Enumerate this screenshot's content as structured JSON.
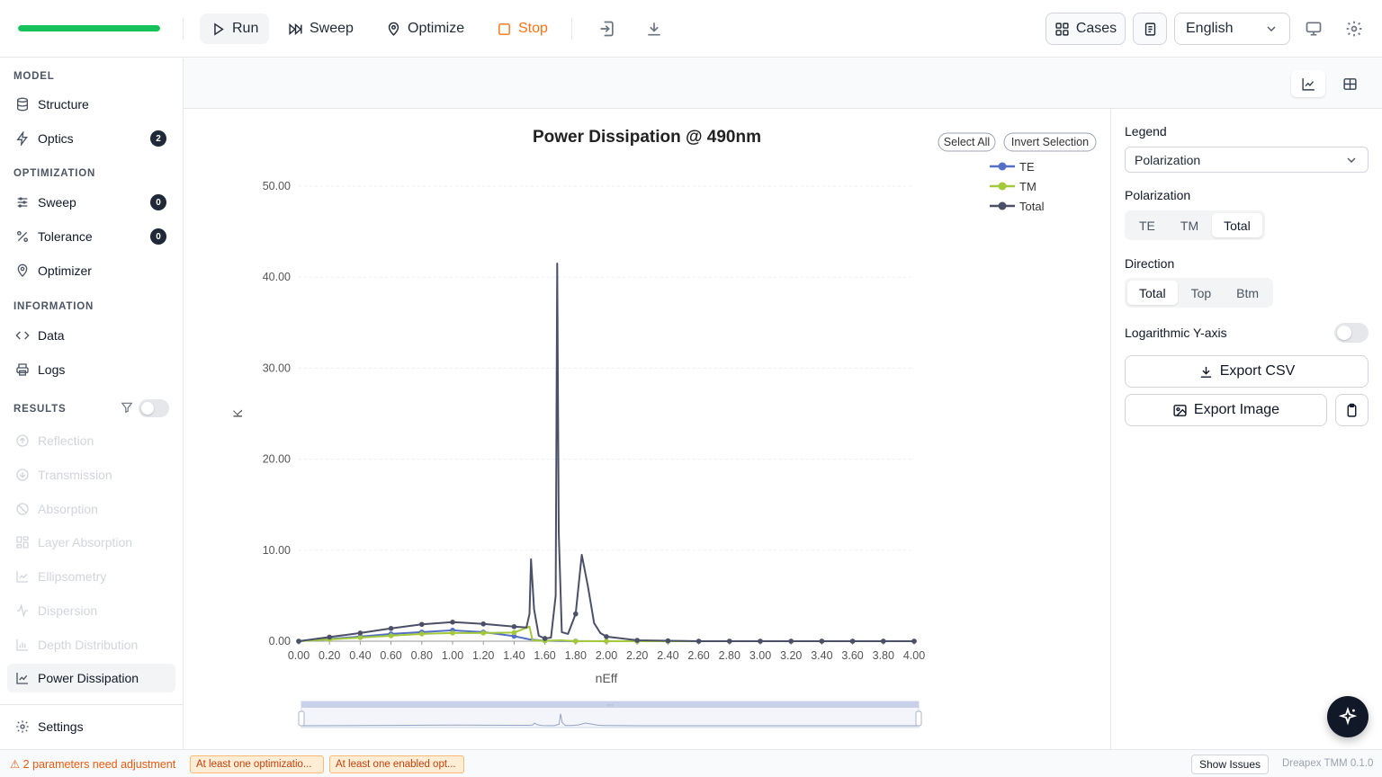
{
  "toolbar": {
    "progress": 1.0,
    "run": "Run",
    "sweep": "Sweep",
    "optimize": "Optimize",
    "stop": "Stop",
    "cases": "Cases",
    "language": "English"
  },
  "sidebar": {
    "model_title": "MODEL",
    "structure": "Structure",
    "optics": "Optics",
    "optics_badge": "2",
    "optimization_title": "OPTIMIZATION",
    "sweep": "Sweep",
    "sweep_badge": "0",
    "tolerance": "Tolerance",
    "tolerance_badge": "0",
    "optimizer": "Optimizer",
    "information_title": "INFORMATION",
    "data": "Data",
    "logs": "Logs",
    "results_title": "RESULTS",
    "results": [
      "Reflection",
      "Transmission",
      "Absorption",
      "Layer Absorption",
      "Ellipsometry",
      "Dispersion",
      "Depth Distribution"
    ],
    "active": "Power Dissipation",
    "settings": "Settings"
  },
  "chart_controls": {
    "select_all": "Select All",
    "invert_selection": "Invert Selection"
  },
  "chart_data": {
    "type": "line",
    "title": "Power Dissipation @ 490nm",
    "xlabel": "nEff",
    "ylabel": "K",
    "xlim": [
      0,
      4
    ],
    "ylim": [
      0,
      50
    ],
    "x_ticks": [
      "0.00",
      "0.20",
      "0.40",
      "0.60",
      "0.80",
      "1.00",
      "1.20",
      "1.40",
      "1.60",
      "1.80",
      "2.00",
      "2.20",
      "2.40",
      "2.60",
      "2.80",
      "3.00",
      "3.20",
      "3.40",
      "3.60",
      "3.80",
      "4.00"
    ],
    "y_ticks": [
      "0.00",
      "10.00",
      "20.00",
      "30.00",
      "40.00",
      "50.00"
    ],
    "grid": true,
    "legend_position": "top-right",
    "series": [
      {
        "name": "TE",
        "color": "#5470c6",
        "points": [
          [
            0,
            0
          ],
          [
            0.2,
            0.25
          ],
          [
            0.4,
            0.5
          ],
          [
            0.6,
            0.8
          ],
          [
            0.8,
            1.0
          ],
          [
            1.0,
            1.2
          ],
          [
            1.2,
            1.0
          ],
          [
            1.4,
            0.55
          ],
          [
            1.5,
            0.2
          ],
          [
            1.6,
            0.05
          ],
          [
            1.7,
            0.02
          ],
          [
            1.8,
            0.01
          ],
          [
            2.0,
            0
          ],
          [
            2.2,
            0
          ],
          [
            2.4,
            0
          ],
          [
            2.6,
            0
          ],
          [
            2.8,
            0
          ],
          [
            3.0,
            0
          ],
          [
            3.2,
            0
          ],
          [
            3.4,
            0
          ],
          [
            3.6,
            0
          ],
          [
            3.8,
            0
          ],
          [
            4.0,
            0
          ]
        ]
      },
      {
        "name": "TM",
        "color": "#a3c93a",
        "points": [
          [
            0,
            0
          ],
          [
            0.2,
            0.2
          ],
          [
            0.4,
            0.4
          ],
          [
            0.6,
            0.6
          ],
          [
            0.8,
            0.8
          ],
          [
            1.0,
            0.9
          ],
          [
            1.2,
            0.9
          ],
          [
            1.4,
            0.95
          ],
          [
            1.5,
            1.6
          ],
          [
            1.52,
            0.1
          ],
          [
            1.6,
            0.05
          ],
          [
            1.7,
            0.1
          ],
          [
            1.8,
            0
          ],
          [
            2.0,
            0
          ],
          [
            2.2,
            0
          ],
          [
            2.4,
            0
          ],
          [
            2.6,
            0
          ],
          [
            2.8,
            0
          ],
          [
            3.0,
            0
          ],
          [
            3.2,
            0
          ],
          [
            3.4,
            0
          ],
          [
            3.6,
            0
          ],
          [
            3.8,
            0
          ],
          [
            4.0,
            0
          ]
        ]
      },
      {
        "name": "Total",
        "color": "#4b5068",
        "points": [
          [
            0,
            0
          ],
          [
            0.2,
            0.45
          ],
          [
            0.4,
            0.9
          ],
          [
            0.6,
            1.4
          ],
          [
            0.8,
            1.85
          ],
          [
            1.0,
            2.1
          ],
          [
            1.2,
            1.9
          ],
          [
            1.4,
            1.6
          ],
          [
            1.48,
            1.5
          ],
          [
            1.5,
            3.0
          ],
          [
            1.51,
            9.0
          ],
          [
            1.53,
            3.5
          ],
          [
            1.56,
            0.6
          ],
          [
            1.6,
            0.3
          ],
          [
            1.64,
            0.4
          ],
          [
            1.67,
            5.0
          ],
          [
            1.68,
            41.5
          ],
          [
            1.69,
            12.0
          ],
          [
            1.71,
            1.0
          ],
          [
            1.75,
            0.8
          ],
          [
            1.8,
            3.0
          ],
          [
            1.84,
            9.5
          ],
          [
            1.88,
            6.0
          ],
          [
            1.92,
            2.0
          ],
          [
            1.96,
            0.9
          ],
          [
            2.0,
            0.5
          ],
          [
            2.2,
            0.1
          ],
          [
            2.4,
            0.05
          ],
          [
            2.6,
            0
          ],
          [
            2.8,
            0
          ],
          [
            3.0,
            0
          ],
          [
            3.2,
            0
          ],
          [
            3.4,
            0
          ],
          [
            3.6,
            0
          ],
          [
            3.8,
            0
          ],
          [
            4.0,
            0
          ]
        ]
      }
    ]
  },
  "right_panel": {
    "legend_label": "Legend",
    "legend_value": "Polarization",
    "polarization_label": "Polarization",
    "polarization_options": [
      "TE",
      "TM",
      "Total"
    ],
    "polarization_selected": "Total",
    "direction_label": "Direction",
    "direction_options": [
      "Total",
      "Top",
      "Btm"
    ],
    "direction_selected": "Total",
    "log_label": "Logarithmic Y-axis",
    "export_csv": "Export CSV",
    "export_image": "Export Image"
  },
  "status": {
    "warning": "⚠ 2 parameters need adjustment",
    "chip1": "At least one optimizatio...",
    "chip2": "At least one enabled opt...",
    "show_issues": "Show Issues",
    "version": "Dreapex TMM 0.1.0"
  }
}
